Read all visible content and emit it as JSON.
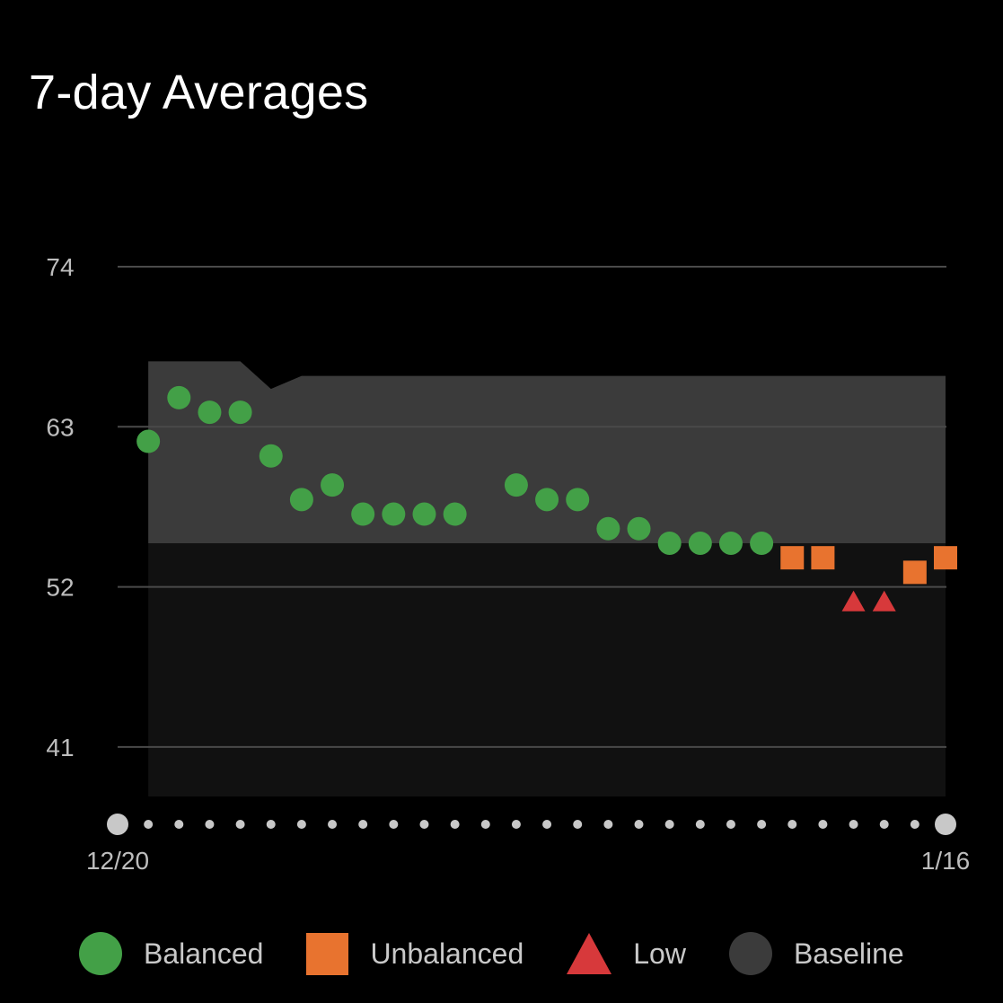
{
  "title": "7-day Averages",
  "colors": {
    "background": "#000000",
    "grid": "#4a4a4a",
    "balanced": "#43a047",
    "unbalanced": "#e8732f",
    "low": "#d7393b",
    "baseline_band": "#3b3b3b",
    "plot_area": "#111111",
    "axis_dot": "#c8c8c8"
  },
  "legend": [
    {
      "label": "Balanced",
      "shape": "circle",
      "color": "#43a047"
    },
    {
      "label": "Unbalanced",
      "shape": "square",
      "color": "#e8732f"
    },
    {
      "label": "Low",
      "shape": "triangle",
      "color": "#d7393b"
    },
    {
      "label": "Baseline",
      "shape": "circle",
      "color": "#3b3b3b"
    }
  ],
  "chart_data": {
    "type": "scatter",
    "title": "7-day Averages",
    "x_start_label": "12/20",
    "x_end_label": "1/16",
    "yticks": [
      74,
      63,
      52,
      41
    ],
    "ylim": [
      37.6,
      74
    ],
    "grid": true,
    "legend_position": "bottom",
    "x_dates": [
      "12/20",
      "12/21",
      "12/22",
      "12/23",
      "12/24",
      "12/25",
      "12/26",
      "12/27",
      "12/28",
      "12/29",
      "12/30",
      "12/31",
      "1/1",
      "1/2",
      "1/3",
      "1/4",
      "1/5",
      "1/6",
      "1/7",
      "1/8",
      "1/9",
      "1/10",
      "1/11",
      "1/12",
      "1/13",
      "1/14",
      "1/15",
      "1/16"
    ],
    "points": [
      {
        "x": "12/21",
        "y": 62,
        "status": "Balanced"
      },
      {
        "x": "12/22",
        "y": 65,
        "status": "Balanced"
      },
      {
        "x": "12/23",
        "y": 64,
        "status": "Balanced"
      },
      {
        "x": "12/24",
        "y": 64,
        "status": "Balanced"
      },
      {
        "x": "12/25",
        "y": 61,
        "status": "Balanced"
      },
      {
        "x": "12/26",
        "y": 58,
        "status": "Balanced"
      },
      {
        "x": "12/27",
        "y": 59,
        "status": "Balanced"
      },
      {
        "x": "12/28",
        "y": 57,
        "status": "Balanced"
      },
      {
        "x": "12/29",
        "y": 57,
        "status": "Balanced"
      },
      {
        "x": "12/30",
        "y": 57,
        "status": "Balanced"
      },
      {
        "x": "12/31",
        "y": 57,
        "status": "Balanced"
      },
      {
        "x": "1/2",
        "y": 59,
        "status": "Balanced"
      },
      {
        "x": "1/3",
        "y": 58,
        "status": "Balanced"
      },
      {
        "x": "1/4",
        "y": 58,
        "status": "Balanced"
      },
      {
        "x": "1/5",
        "y": 56,
        "status": "Balanced"
      },
      {
        "x": "1/6",
        "y": 56,
        "status": "Balanced"
      },
      {
        "x": "1/7",
        "y": 55,
        "status": "Balanced"
      },
      {
        "x": "1/8",
        "y": 55,
        "status": "Balanced"
      },
      {
        "x": "1/9",
        "y": 55,
        "status": "Balanced"
      },
      {
        "x": "1/10",
        "y": 55,
        "status": "Balanced"
      },
      {
        "x": "1/11",
        "y": 54,
        "status": "Unbalanced"
      },
      {
        "x": "1/12",
        "y": 54,
        "status": "Unbalanced"
      },
      {
        "x": "1/13",
        "y": 51,
        "status": "Low"
      },
      {
        "x": "1/14",
        "y": 51,
        "status": "Low"
      },
      {
        "x": "1/15",
        "y": 53,
        "status": "Unbalanced"
      },
      {
        "x": "1/16",
        "y": 54,
        "status": "Unbalanced"
      }
    ],
    "baseline_band": {
      "lower": 55,
      "upper": [
        {
          "x": "12/21",
          "y": 67.5
        },
        {
          "x": "12/24",
          "y": 67.5
        },
        {
          "x": "12/25",
          "y": 65.6
        },
        {
          "x": "12/26",
          "y": 66.5
        },
        {
          "x": "1/16",
          "y": 66.5
        }
      ]
    }
  }
}
